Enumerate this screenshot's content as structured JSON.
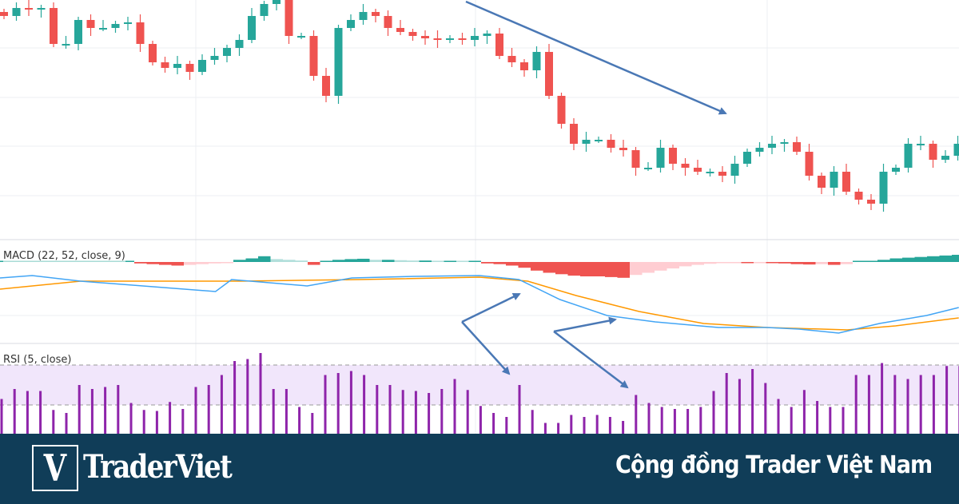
{
  "chart_data": [
    {
      "type": "candlestick",
      "panel": "price",
      "grid": true,
      "closes": [
        280,
        290,
        288,
        290,
        245,
        245,
        275,
        265,
        265,
        270,
        272,
        245,
        222,
        215,
        220,
        210,
        225,
        230,
        240,
        250,
        280,
        295,
        300,
        255,
        255,
        205,
        180,
        265,
        275,
        285,
        280,
        265,
        260,
        255,
        252,
        250,
        252,
        250,
        255,
        258,
        230,
        222,
        212,
        235,
        180,
        145,
        120,
        125,
        125,
        115,
        112,
        90,
        90,
        115,
        95,
        90,
        85,
        85,
        80,
        95,
        110,
        115,
        120,
        122,
        110,
        80,
        65,
        85,
        60,
        50,
        45,
        85,
        90,
        120,
        120,
        100,
        105,
        120,
        125,
        120
      ],
      "colors": {
        "up": "#26a69a",
        "down": "#ef5350"
      }
    },
    {
      "type": "bar+line",
      "panel": "macd",
      "title": "MACD (22, 52, close, 9)",
      "histogram": [
        0.05,
        0.05,
        0.05,
        0.05,
        0.05,
        0.05,
        0.05,
        0.05,
        0.05,
        0.05,
        0.05,
        -0.2,
        -0.3,
        -0.4,
        -0.5,
        -0.4,
        -0.3,
        -0.2,
        -0.1,
        0.3,
        0.5,
        0.8,
        0.4,
        0.3,
        0.2,
        -0.4,
        0.1,
        0.3,
        0.4,
        0.45,
        0.3,
        0.3,
        0.25,
        0.2,
        0.2,
        0.15,
        0.15,
        0.1,
        0.1,
        -0.2,
        -0.3,
        -0.5,
        -0.8,
        -1.2,
        -1.5,
        -1.7,
        -1.9,
        -2.0,
        -2.0,
        -2.1,
        -2.2,
        -1.8,
        -1.5,
        -1.2,
        -0.9,
        -0.6,
        -0.4,
        -0.25,
        -0.15,
        -0.1,
        -0.1,
        -0.05,
        -0.05,
        -0.2,
        -0.3,
        -0.35,
        -0.3,
        -0.4,
        -0.3,
        0.0,
        0.05,
        0.3,
        0.5,
        0.6,
        0.7,
        0.8,
        0.9,
        1.0
      ],
      "macd_line": [
        [
          0,
          -2.2
        ],
        [
          2.6,
          -1.9
        ],
        [
          6.5,
          -2.6
        ],
        [
          17.4,
          -3.9
        ],
        [
          18.7,
          -2.4
        ],
        [
          24.8,
          -3.2
        ],
        [
          28.4,
          -2.2
        ],
        [
          33.5,
          -2.0
        ],
        [
          38.7,
          -1.9
        ],
        [
          41.9,
          -2.4
        ],
        [
          45.2,
          -4.9
        ],
        [
          49,
          -6.9
        ],
        [
          52.9,
          -7.7
        ],
        [
          58,
          -8.4
        ],
        [
          61.9,
          -8.4
        ],
        [
          64.5,
          -8.6
        ],
        [
          67.7,
          -9.1
        ],
        [
          71,
          -7.9
        ],
        [
          74.8,
          -6.9
        ],
        [
          77.4,
          -5.9
        ]
      ],
      "signal_line": [
        [
          0,
          -3.6
        ],
        [
          6.5,
          -2.6
        ],
        [
          19.4,
          -2.6
        ],
        [
          29,
          -2.4
        ],
        [
          38.7,
          -2.1
        ],
        [
          42.6,
          -2.6
        ],
        [
          46.5,
          -4.4
        ],
        [
          51.6,
          -6.4
        ],
        [
          56.8,
          -7.9
        ],
        [
          61.9,
          -8.4
        ],
        [
          68.4,
          -8.7
        ],
        [
          72.3,
          -8.2
        ],
        [
          77.4,
          -7.2
        ]
      ],
      "colors": {
        "macd": "#42a5f5",
        "signal": "#ff9800",
        "up_strong": "#26a69a",
        "up_weak": "#b2dfdb",
        "down_strong": "#ef5350",
        "down_weak": "#ffcdd2"
      }
    },
    {
      "type": "bar",
      "panel": "rsi",
      "title": "RSI (5, close)",
      "band": [
        30,
        70
      ],
      "values": [
        36,
        46,
        44,
        44,
        25,
        22,
        50,
        46,
        48,
        50,
        32,
        25,
        24,
        33,
        26,
        48,
        50,
        60,
        74,
        76,
        82,
        46,
        46,
        28,
        22,
        60,
        62,
        64,
        60,
        50,
        50,
        45,
        44,
        42,
        46,
        56,
        45,
        29,
        22,
        18,
        50,
        25,
        12,
        12,
        20,
        18,
        20,
        18,
        14,
        40,
        32,
        28,
        26,
        26,
        28,
        44,
        62,
        56,
        66,
        52,
        36,
        28,
        45,
        34,
        28,
        28,
        60,
        60,
        72,
        60,
        56,
        60,
        60,
        69,
        69
      ],
      "colors": {
        "bar": "#8e24aa",
        "band": "#f1e6fb"
      }
    }
  ],
  "footer": {
    "logo_letter": "V",
    "logo_text": "TraderViet",
    "slogan": "Cộng đồng Trader Việt Nam",
    "background": "#103d58"
  }
}
